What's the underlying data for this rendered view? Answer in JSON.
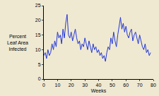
{
  "chart_data": {
    "type": "line",
    "x_label": "Weeks",
    "y_label": "Percent Leaf Area Infected",
    "x": [
      0,
      1,
      2,
      3,
      4,
      5,
      6,
      7,
      8,
      9,
      10,
      11,
      12,
      13,
      14,
      15,
      16,
      17,
      18,
      19,
      20,
      21,
      22,
      23,
      24,
      25,
      26,
      27,
      28,
      29,
      30,
      31,
      32,
      33,
      34,
      35,
      36,
      37,
      38,
      39,
      40,
      41,
      42,
      43,
      44,
      45,
      46,
      47,
      48,
      49,
      50,
      51,
      52,
      53,
      54,
      55,
      56,
      57,
      58,
      59,
      60,
      61,
      62,
      63,
      64,
      65,
      66,
      67,
      68,
      69,
      70,
      71,
      72,
      73,
      74,
      75,
      76,
      77,
      78
    ],
    "values": [
      8,
      9,
      7,
      10,
      8,
      9,
      12,
      10,
      13,
      11,
      16,
      14,
      15,
      12,
      17,
      14,
      19,
      22,
      15,
      14,
      16,
      13,
      15,
      17,
      14,
      12,
      13,
      10,
      12,
      11,
      14,
      12,
      10,
      13,
      11,
      9,
      12,
      10,
      11,
      9,
      10,
      8,
      9,
      7,
      8,
      6,
      9,
      11,
      10,
      14,
      12,
      16,
      13,
      11,
      15,
      18,
      21,
      17,
      19,
      16,
      18,
      15,
      14,
      16,
      17,
      13,
      15,
      16,
      14,
      12,
      15,
      13,
      11,
      10,
      12,
      9,
      10,
      8,
      9
    ],
    "color": "#2236d8",
    "xlim": [
      0,
      80
    ],
    "xticks": [
      0,
      10,
      20,
      30,
      40,
      50,
      60,
      70,
      80
    ],
    "ylim": [
      0,
      25
    ],
    "yticks": [
      0,
      5,
      10,
      15,
      20,
      25
    ],
    "grid": false
  }
}
